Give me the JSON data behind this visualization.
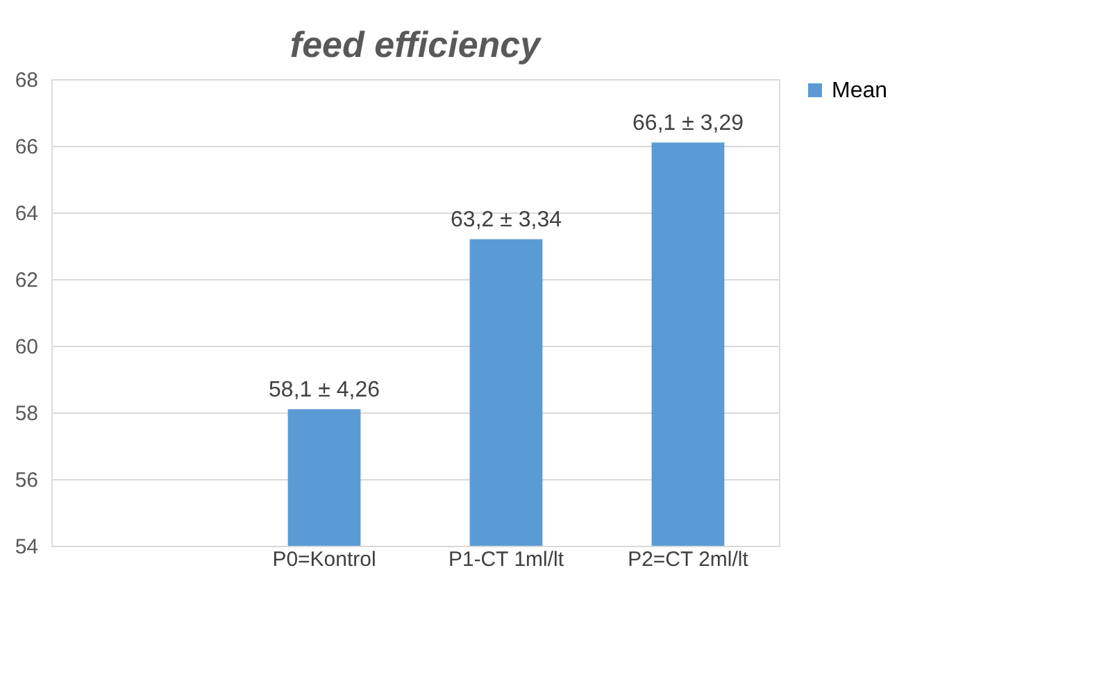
{
  "chart_data": {
    "type": "bar",
    "title": "feed efficiency",
    "categories": [
      null,
      "P0=Kontrol",
      "P1-CT 1ml/lt",
      "P2=CT 2ml/lt"
    ],
    "series": [
      {
        "name": "Mean",
        "color": "#5b9bd5",
        "values": [
          null,
          58.1,
          63.2,
          66.1
        ],
        "value_labels": [
          null,
          "58,1 ± 4,26",
          "63,2 ± 3,34",
          "66,1 ± 3,29"
        ]
      }
    ],
    "ylim": [
      54,
      68
    ],
    "yticks": [
      54,
      56,
      58,
      60,
      62,
      64,
      66,
      68
    ],
    "grid": "y",
    "legend": "right"
  }
}
